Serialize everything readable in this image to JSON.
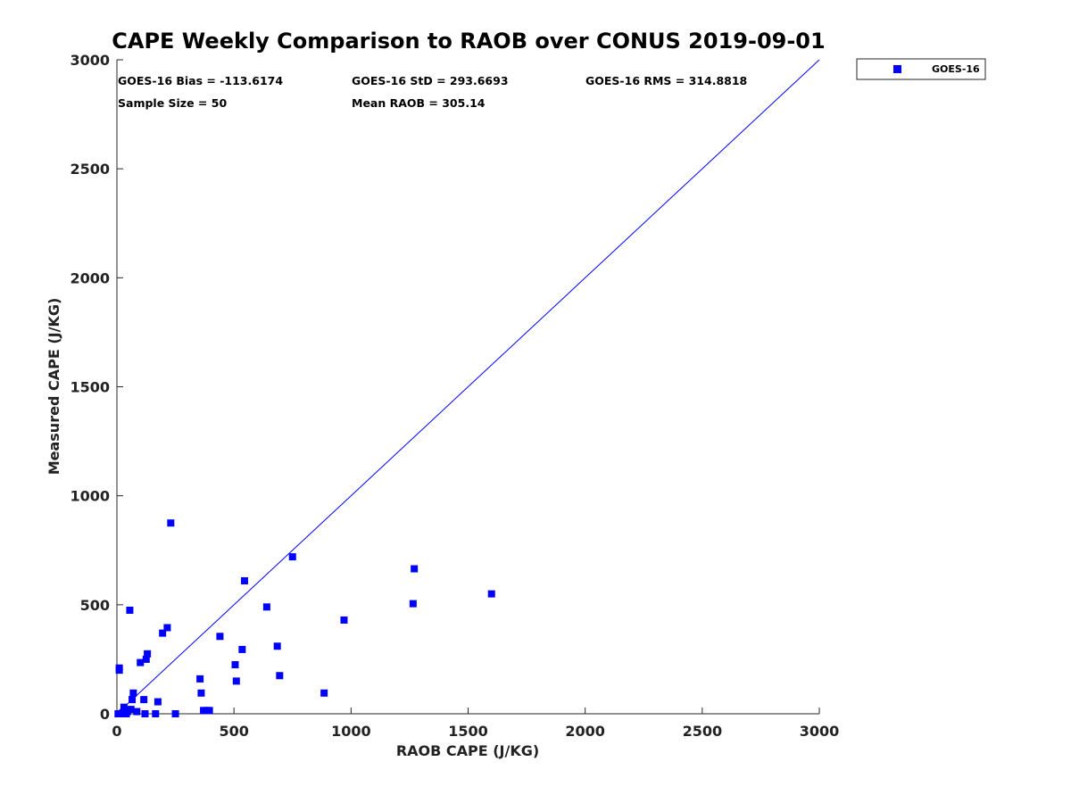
{
  "chart_data": {
    "type": "scatter",
    "title": "CAPE Weekly Comparison to RAOB over CONUS 2019-09-01",
    "xlabel": "RAOB CAPE (J/KG)",
    "ylabel": "Measured CAPE (J/KG)",
    "xlim": [
      0,
      3000
    ],
    "ylim": [
      0,
      3000
    ],
    "xticks": [
      0,
      500,
      1000,
      1500,
      2000,
      2500,
      3000
    ],
    "yticks": [
      0,
      500,
      1000,
      1500,
      2000,
      2500,
      3000
    ],
    "grid": false,
    "legend_position": "outside-top-right",
    "reference_line": {
      "from": [
        0,
        0
      ],
      "to": [
        3000,
        3000
      ],
      "color": "#0000ff"
    },
    "series": [
      {
        "name": "GOES-16",
        "color": "#0000ff",
        "marker": "square",
        "points": [
          [
            5,
            0
          ],
          [
            15,
            0
          ],
          [
            20,
            0
          ],
          [
            25,
            5
          ],
          [
            30,
            30
          ],
          [
            40,
            0
          ],
          [
            45,
            10
          ],
          [
            10,
            200
          ],
          [
            10,
            210
          ],
          [
            55,
            475
          ],
          [
            60,
            20
          ],
          [
            65,
            65
          ],
          [
            70,
            95
          ],
          [
            85,
            10
          ],
          [
            100,
            235
          ],
          [
            115,
            65
          ],
          [
            120,
            0
          ],
          [
            125,
            250
          ],
          [
            130,
            275
          ],
          [
            165,
            0
          ],
          [
            175,
            55
          ],
          [
            195,
            370
          ],
          [
            215,
            395
          ],
          [
            230,
            875
          ],
          [
            250,
            0
          ],
          [
            355,
            160
          ],
          [
            360,
            95
          ],
          [
            370,
            15
          ],
          [
            385,
            15
          ],
          [
            395,
            15
          ],
          [
            440,
            355
          ],
          [
            505,
            225
          ],
          [
            510,
            150
          ],
          [
            535,
            295
          ],
          [
            545,
            610
          ],
          [
            640,
            490
          ],
          [
            685,
            310
          ],
          [
            695,
            175
          ],
          [
            750,
            720
          ],
          [
            885,
            95
          ],
          [
            970,
            430
          ],
          [
            1265,
            505
          ],
          [
            1270,
            665
          ],
          [
            1600,
            550
          ]
        ]
      }
    ],
    "stats": {
      "bias": "GOES-16 Bias = -113.6174",
      "std": "GOES-16 StD = 293.6693",
      "rms": "GOES-16 RMS = 314.8818",
      "sample_size": "Sample Size = 50",
      "mean_raob": "Mean RAOB = 305.14"
    }
  }
}
